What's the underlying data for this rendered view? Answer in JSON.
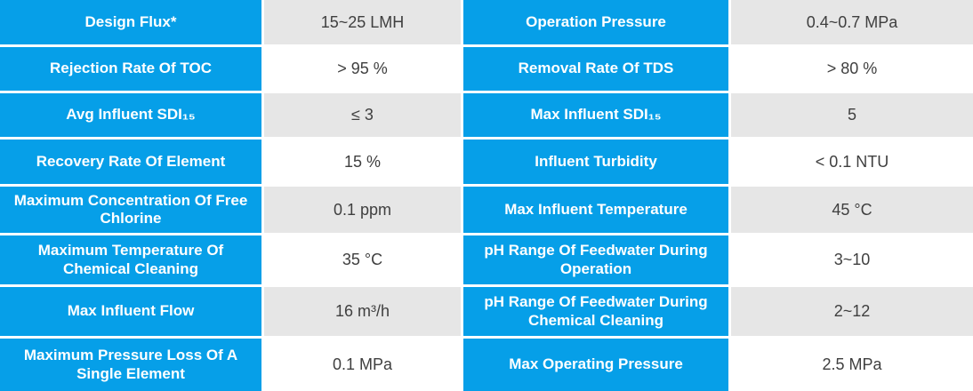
{
  "colors": {
    "header_blue": "#069fe8",
    "row_gray": "#e6e6e6",
    "row_white": "#ffffff",
    "label_text": "#ffffff",
    "value_text": "#3f3f3f"
  },
  "table": {
    "rows": [
      {
        "left_label": "Design Flux*",
        "left_value": "15~25 LMH",
        "right_label": "Operation Pressure",
        "right_value": "0.4~0.7 MPa"
      },
      {
        "left_label": "Rejection Rate Of TOC",
        "left_value": "> 95 %",
        "right_label": "Removal Rate Of TDS",
        "right_value": "> 80 %"
      },
      {
        "left_label": "Avg Influent SDI₁₅",
        "left_value": "≤ 3",
        "right_label": "Max Influent SDI₁₅",
        "right_value": "5"
      },
      {
        "left_label": "Recovery Rate Of Element",
        "left_value": "15 %",
        "right_label": "Influent Turbidity",
        "right_value": "< 0.1 NTU"
      },
      {
        "left_label": "Maximum Concentration Of Free Chlorine",
        "left_value": "0.1 ppm",
        "right_label": "Max Influent Temperature",
        "right_value": "45 °C"
      },
      {
        "left_label": "Maximum Temperature Of Chemical Cleaning",
        "left_value": "35 °C",
        "right_label": "pH Range Of Feedwater During Operation",
        "right_value": "3~10"
      },
      {
        "left_label": "Max Influent Flow",
        "left_value": "16 m³/h",
        "right_label": "pH Range Of Feedwater During Chemical Cleaning",
        "right_value": "2~12"
      },
      {
        "left_label": "Maximum Pressure Loss Of A Single Element",
        "left_value": "0.1 MPa",
        "right_label": "Max Operating Pressure",
        "right_value": "2.5 MPa"
      }
    ]
  }
}
